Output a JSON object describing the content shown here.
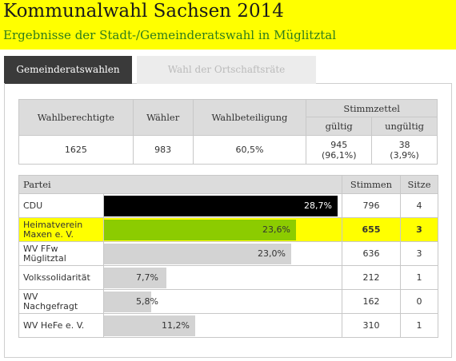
{
  "header": {
    "title": "Kommunalwahl Sachsen 2014",
    "subtitle": "Ergebnisse der Stadt-/Gemeinderatswahl in Müglitztal"
  },
  "tabs": [
    {
      "label": "Gemeinderatswahlen",
      "active": true
    },
    {
      "label": "Wahl der Ortschaftsräte",
      "active": false
    }
  ],
  "summary": {
    "headers": {
      "eligible": "Wahlberechtigte",
      "voters": "Wähler",
      "turnout": "Wahlbeteiligung",
      "ballots": "Stimmzettel",
      "valid": "gültig",
      "invalid": "ungültig"
    },
    "values": {
      "eligible": "1625",
      "voters": "983",
      "turnout": "60,5%",
      "valid_count": "945",
      "valid_pct": "(96,1%)",
      "invalid_count": "38",
      "invalid_pct": "(3,9%)"
    }
  },
  "results": {
    "headers": {
      "party": "Partei",
      "votes": "Stimmen",
      "seats": "Sitze"
    },
    "rows": [
      {
        "party_line1": "CDU",
        "party_line2": "",
        "percent_label": "28,7%",
        "percent": 28.7,
        "votes": "796",
        "seats": "4",
        "bar_color": "#000000",
        "label_color": "#ffffff",
        "highlight": false
      },
      {
        "party_line1": "Heimatverein",
        "party_line2": "Maxen e. V.",
        "percent_label": "23,6%",
        "percent": 23.6,
        "votes": "655",
        "seats": "3",
        "bar_color": "#8ccc00",
        "label_color": "#333333",
        "highlight": true
      },
      {
        "party_line1": "WV FFw",
        "party_line2": "Müglitztal",
        "percent_label": "23,0%",
        "percent": 23.0,
        "votes": "636",
        "seats": "3",
        "bar_color": "#d3d3d3",
        "label_color": "#333333",
        "highlight": false
      },
      {
        "party_line1": "Volkssolidarität",
        "party_line2": "",
        "percent_label": "7,7%",
        "percent": 7.7,
        "votes": "212",
        "seats": "1",
        "bar_color": "#d3d3d3",
        "label_color": "#333333",
        "highlight": false
      },
      {
        "party_line1": "WV",
        "party_line2": "Nachgefragt",
        "percent_label": "5,8%",
        "percent": 5.8,
        "votes": "162",
        "seats": "0",
        "bar_color": "#d3d3d3",
        "label_color": "#333333",
        "highlight": false
      },
      {
        "party_line1": "WV HeFe e. V.",
        "party_line2": "",
        "percent_label": "11,2%",
        "percent": 11.2,
        "votes": "310",
        "seats": "1",
        "bar_color": "#d3d3d3",
        "label_color": "#333333",
        "highlight": false
      }
    ]
  }
}
